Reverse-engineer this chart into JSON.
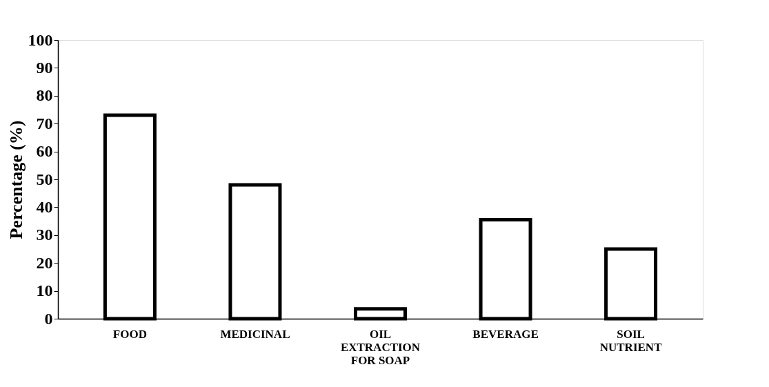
{
  "chart_data": {
    "type": "bar",
    "ylabel": "Percentage (%)",
    "categories": [
      "FOOD",
      "MEDICINAL",
      "OIL EXTRACTION FOR SOAP",
      "BEVERAGE",
      "SOIL NUTRIENT"
    ],
    "values": [
      73,
      48,
      3.5,
      35.5,
      25
    ],
    "color": "#ffffff",
    "ylim": [
      0,
      100
    ],
    "yticks": [
      0,
      10,
      20,
      30,
      40,
      50,
      60,
      70,
      80,
      90,
      100
    ],
    "grid": false,
    "legend": false
  }
}
